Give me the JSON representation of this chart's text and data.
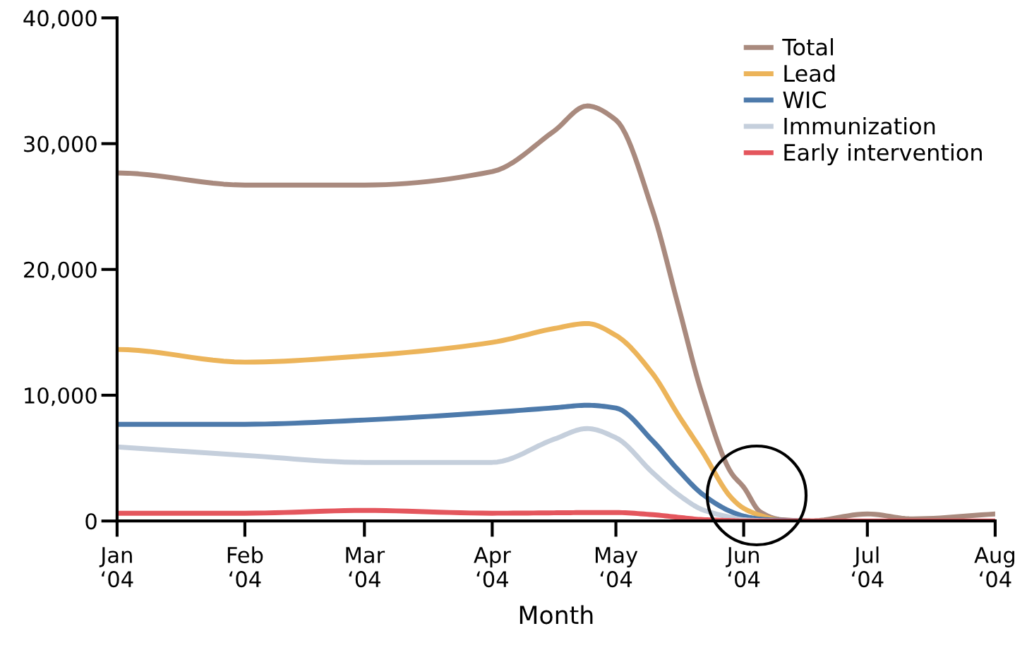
{
  "chart_data": {
    "type": "line",
    "xlabel": "Month",
    "x": [
      "2004-01-01",
      "2004-02-01",
      "2004-03-01",
      "2004-04-01",
      "2004-04-16",
      "2004-04-24",
      "2004-05-01",
      "2004-05-10",
      "2004-05-16",
      "2004-05-22",
      "2004-05-29",
      "2004-06-01",
      "2004-06-05",
      "2004-06-10",
      "2004-06-17",
      "2004-07-01",
      "2004-07-12",
      "2004-08-01"
    ],
    "series": [
      {
        "name": "Total",
        "color": "#a98a7e",
        "values": [
          27670,
          26710,
          26710,
          27780,
          31000,
          33000,
          31880,
          24580,
          17290,
          9990,
          3820,
          2690,
          730,
          110,
          0,
          560,
          170,
          560
        ]
      },
      {
        "name": "Lead",
        "color": "#ecb45a",
        "values": [
          13640,
          12630,
          13130,
          14200,
          15300,
          15700,
          14760,
          11670,
          8500,
          5500,
          1850,
          1010,
          450,
          50,
          0,
          null,
          null,
          null
        ]
      },
      {
        "name": "WIC",
        "color": "#4d7aab",
        "values": [
          7690,
          7690,
          8030,
          8640,
          9000,
          9200,
          8980,
          6340,
          4100,
          2130,
          730,
          390,
          150,
          50,
          0,
          null,
          null,
          null
        ]
      },
      {
        "name": "Immunization",
        "color": "#c5cfdc",
        "values": [
          5890,
          5220,
          4660,
          4660,
          6500,
          7350,
          6620,
          3820,
          2130,
          900,
          280,
          100,
          30,
          0,
          0,
          null,
          null,
          null
        ]
      },
      {
        "name": "Early intervention",
        "color": "#e4565d",
        "values": [
          620,
          620,
          840,
          620,
          650,
          670,
          670,
          500,
          300,
          110,
          30,
          0,
          0,
          0,
          0,
          0,
          0,
          0
        ]
      }
    ],
    "xlim": [
      "2004-01-01",
      "2004-08-01"
    ],
    "xticks": [
      {
        "value": "2004-01-01",
        "label": "Jan\n‘04"
      },
      {
        "value": "2004-02-01",
        "label": "Feb\n‘04"
      },
      {
        "value": "2004-03-01",
        "label": "Mar\n‘04"
      },
      {
        "value": "2004-04-01",
        "label": "Apr\n‘04"
      },
      {
        "value": "2004-05-01",
        "label": "May\n‘04"
      },
      {
        "value": "2004-06-01",
        "label": "Jun\n‘04"
      },
      {
        "value": "2004-07-01",
        "label": "Jul\n‘04"
      },
      {
        "value": "2004-08-01",
        "label": "Aug\n‘04"
      }
    ],
    "ylim": [
      0,
      40000
    ],
    "yticks": [
      {
        "value": 0,
        "label": "0"
      },
      {
        "value": 10000,
        "label": "10,000"
      },
      {
        "value": 20000,
        "label": "20,000"
      },
      {
        "value": 30000,
        "label": "30,000"
      },
      {
        "value": 40000,
        "label": "40,000"
      }
    ],
    "grid": false,
    "legend": "top right",
    "marker": "none",
    "line_style": "solid"
  }
}
